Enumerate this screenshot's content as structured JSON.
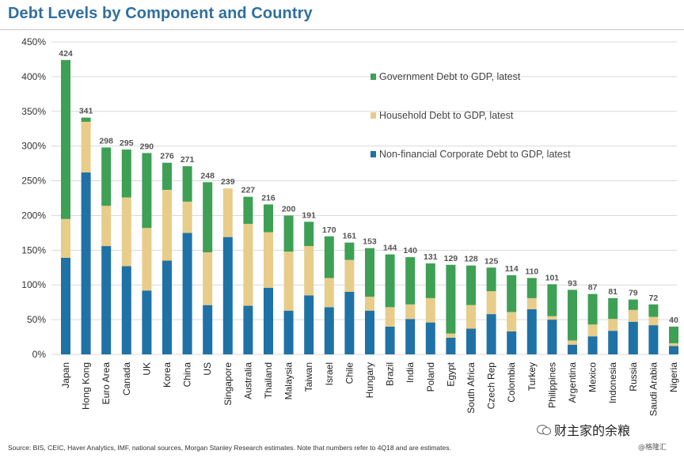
{
  "header": {
    "title": "Debt Levels by Component and Country"
  },
  "footer": {
    "source": "Source: BIS, CEIC, Haver Analytics, IMF, national sources, Morgan Stanley Research estimates. Note that  numbers refer to 4Q18 and are estimates.",
    "brand_name": "财主家的余粮",
    "brand_handle": "@格隆汇"
  },
  "colors": {
    "government": "#3ea055",
    "household": "#e8cc8a",
    "corporate": "#1f72a6",
    "grid": "#d9d9d9",
    "title": "#2f6f9f"
  },
  "chart_data": {
    "type": "bar",
    "stacked": true,
    "title": "Debt Levels by Component and Country",
    "ylim": [
      0,
      450
    ],
    "yticks": [
      0,
      50,
      100,
      150,
      200,
      250,
      300,
      350,
      400,
      450
    ],
    "ytick_labels": [
      "0%",
      "50%",
      "100%",
      "150%",
      "200%",
      "250%",
      "300%",
      "350%",
      "400%",
      "450%"
    ],
    "grid": true,
    "legend_position": "top-right",
    "categories": [
      "Japan",
      "Hong Kong",
      "Euro Area",
      "Canada",
      "UK",
      "Korea",
      "China",
      "US",
      "Singapore",
      "Australia",
      "Thailand",
      "Malaysia",
      "Taiwan",
      "Israel",
      "Chile",
      "Hungary",
      "Brazil",
      "India",
      "Poland",
      "Egypt",
      "South Africa",
      "Czech Rep",
      "Colombia",
      "Turkey",
      "Philippines",
      "Argentina",
      "Mexico",
      "Indonesia",
      "Russia",
      "Saudi Arabia",
      "Nigeria"
    ],
    "totals": [
      424,
      341,
      298,
      295,
      290,
      276,
      271,
      248,
      239,
      227,
      216,
      200,
      191,
      170,
      161,
      153,
      144,
      140,
      131,
      129,
      128,
      125,
      114,
      110,
      101,
      93,
      87,
      81,
      79,
      72,
      40
    ],
    "series": [
      {
        "name": "Non-financial Corporate Debt to GDP, latest",
        "color": "#1f72a6",
        "values": [
          139,
          262,
          156,
          127,
          92,
          135,
          175,
          71,
          169,
          70,
          96,
          63,
          85,
          68,
          90,
          63,
          40,
          51,
          46,
          24,
          37,
          58,
          33,
          65,
          50,
          14,
          26,
          34,
          47,
          42,
          12
        ]
      },
      {
        "name": "Household Debt to GDP, latest",
        "color": "#e8cc8a",
        "values": [
          56,
          73,
          58,
          99,
          90,
          102,
          45,
          76,
          70,
          118,
          80,
          85,
          71,
          42,
          46,
          20,
          28,
          21,
          35,
          6,
          34,
          33,
          28,
          16,
          5,
          6,
          17,
          17,
          17,
          12,
          4
        ]
      },
      {
        "name": "Government Debt to GDP, latest",
        "color": "#3ea055",
        "values": [
          229,
          6,
          84,
          69,
          108,
          39,
          51,
          101,
          0,
          39,
          40,
          52,
          35,
          60,
          25,
          70,
          76,
          68,
          50,
          99,
          57,
          34,
          53,
          29,
          46,
          73,
          44,
          30,
          15,
          18,
          24
        ]
      }
    ]
  }
}
